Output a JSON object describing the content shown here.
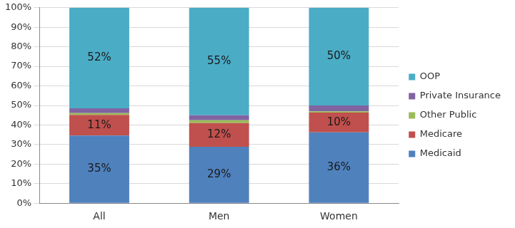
{
  "chart_data": {
    "type": "bar",
    "stacked": true,
    "grid": true,
    "legend": "right",
    "data_labels": true,
    "categories": [
      "All",
      "Men",
      "Women"
    ],
    "ylim": [
      0,
      100
    ],
    "yticks": [
      {
        "value": 0,
        "label": "0%"
      },
      {
        "value": 10,
        "label": "10%"
      },
      {
        "value": 20,
        "label": "20%"
      },
      {
        "value": 30,
        "label": "30%"
      },
      {
        "value": 40,
        "label": "40%"
      },
      {
        "value": 50,
        "label": "50%"
      },
      {
        "value": 60,
        "label": "60%"
      },
      {
        "value": 70,
        "label": "70%"
      },
      {
        "value": 80,
        "label": "80%"
      },
      {
        "value": 90,
        "label": "90%"
      },
      {
        "value": 100,
        "label": "100%"
      }
    ],
    "series": [
      {
        "name": "Medicaid",
        "color": "#4f81bd",
        "values": [
          34.6,
          28.9,
          36.2
        ],
        "value_labels": [
          "35%",
          "29%",
          "36%"
        ]
      },
      {
        "name": "Medicare",
        "color": "#c0504d",
        "values": [
          10.6,
          12.1,
          10.2
        ],
        "value_labels": [
          "11%",
          "12%",
          "10%"
        ]
      },
      {
        "name": "Other Public",
        "color": "#9bbb59",
        "values": [
          0.9,
          1.4,
          0.6
        ]
      },
      {
        "name": "Private Insurance",
        "color": "#8064a2",
        "values": [
          2.4,
          2.6,
          3.0
        ]
      },
      {
        "name": "OOP",
        "color": "#4bacc6",
        "values": [
          51.5,
          55.0,
          50.0
        ],
        "value_labels": [
          "52%",
          "55%",
          "50%"
        ]
      }
    ]
  }
}
